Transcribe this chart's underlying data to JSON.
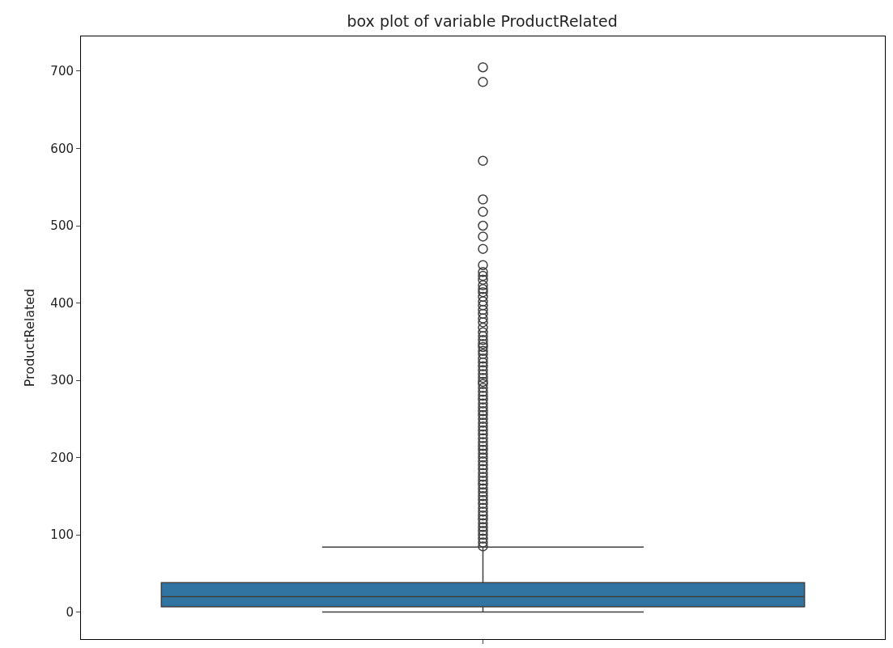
{
  "chart_data": {
    "type": "box",
    "title": "box plot of variable ProductRelated",
    "ylabel": "ProductRelated",
    "categories": [
      null
    ],
    "series": [
      {
        "color": "#3274a1",
        "boxes": [
          {
            "low": 0,
            "q1": 7,
            "median": 20,
            "q3": 38,
            "high": 84,
            "outliers": [
              705,
              686,
              584,
              534,
              518,
              500,
              486,
              470,
              449,
              440,
              435,
              430,
              423,
              418,
              414,
              408,
              402,
              397,
              391,
              386,
              380,
              375,
              368,
              362,
              357,
              352,
              347,
              343,
              338,
              334,
              328,
              323,
              318,
              313,
              308,
              303,
              298,
              295,
              290,
              285,
              280,
              275,
              270,
              265,
              260,
              255,
              250,
              245,
              240,
              235,
              230,
              225,
              220,
              215,
              210,
              205,
              200,
              195,
              190,
              185,
              180,
              175,
              170,
              165,
              160,
              155,
              150,
              145,
              140,
              135,
              130,
              125,
              120,
              115,
              110,
              105,
              100,
              95,
              90,
              85
            ]
          }
        ]
      }
    ],
    "ylim": [
      -35,
      745
    ],
    "yticks": [
      0,
      100,
      200,
      300,
      400,
      500,
      600,
      700
    ]
  }
}
